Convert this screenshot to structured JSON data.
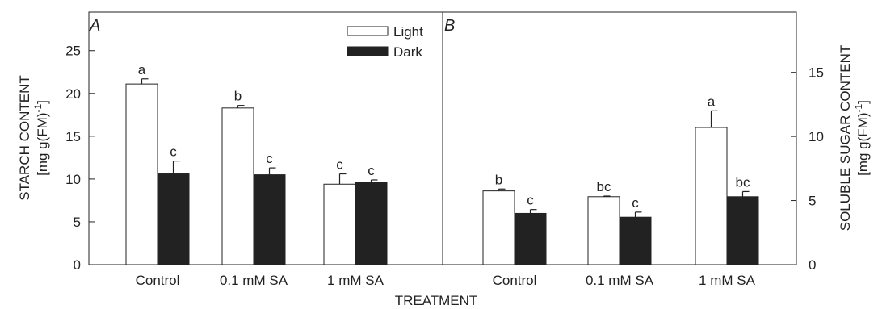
{
  "chart_data": [
    {
      "panel": "A",
      "type": "bar",
      "categories": [
        "Control",
        "0.1 mM SA",
        "1 mM SA"
      ],
      "series": [
        {
          "name": "Light",
          "color": "#ffffff",
          "values": [
            21.1,
            18.3,
            9.4
          ],
          "errors": [
            0.6,
            0.3,
            1.2
          ],
          "letters": [
            "a",
            "b",
            "c"
          ]
        },
        {
          "name": "Dark",
          "color": "#222222",
          "values": [
            10.6,
            10.5,
            9.6
          ],
          "errors": [
            1.5,
            0.8,
            0.3
          ],
          "letters": [
            "c",
            "c",
            "c"
          ]
        }
      ],
      "ylabel": "STARCH CONTENT",
      "ylabel_unit": "[mg g(FM)",
      "ylabel_unit_sup": "-1",
      "ylabel_unit_end": "]",
      "ylim": [
        0,
        29.5
      ],
      "yticks": [
        0,
        5,
        10,
        15,
        20,
        25
      ],
      "legend_position": "top-right"
    },
    {
      "panel": "B",
      "type": "bar",
      "categories": [
        "Control",
        "0.1 mM SA",
        "1 mM SA"
      ],
      "series": [
        {
          "name": "Light",
          "color": "#ffffff",
          "values": [
            5.75,
            5.3,
            10.7
          ],
          "errors": [
            0.15,
            0.05,
            1.3
          ],
          "letters": [
            "b",
            "bc",
            "a"
          ]
        },
        {
          "name": "Dark",
          "color": "#222222",
          "values": [
            4.0,
            3.7,
            5.3
          ],
          "errors": [
            0.3,
            0.4,
            0.4
          ],
          "letters": [
            "c",
            "c",
            "bc"
          ]
        }
      ],
      "ylabel": "SOLUBLE SUGAR CONTENT",
      "ylabel_unit": "[mg g(FM)",
      "ylabel_unit_sup": "-1",
      "ylabel_unit_end": "]",
      "ylim": [
        0,
        19.7
      ],
      "yticks": [
        0,
        5,
        10,
        15
      ],
      "legend_position": "none"
    }
  ],
  "xlabel": "TREATMENT",
  "legend": {
    "light": "Light",
    "dark": "Dark"
  }
}
